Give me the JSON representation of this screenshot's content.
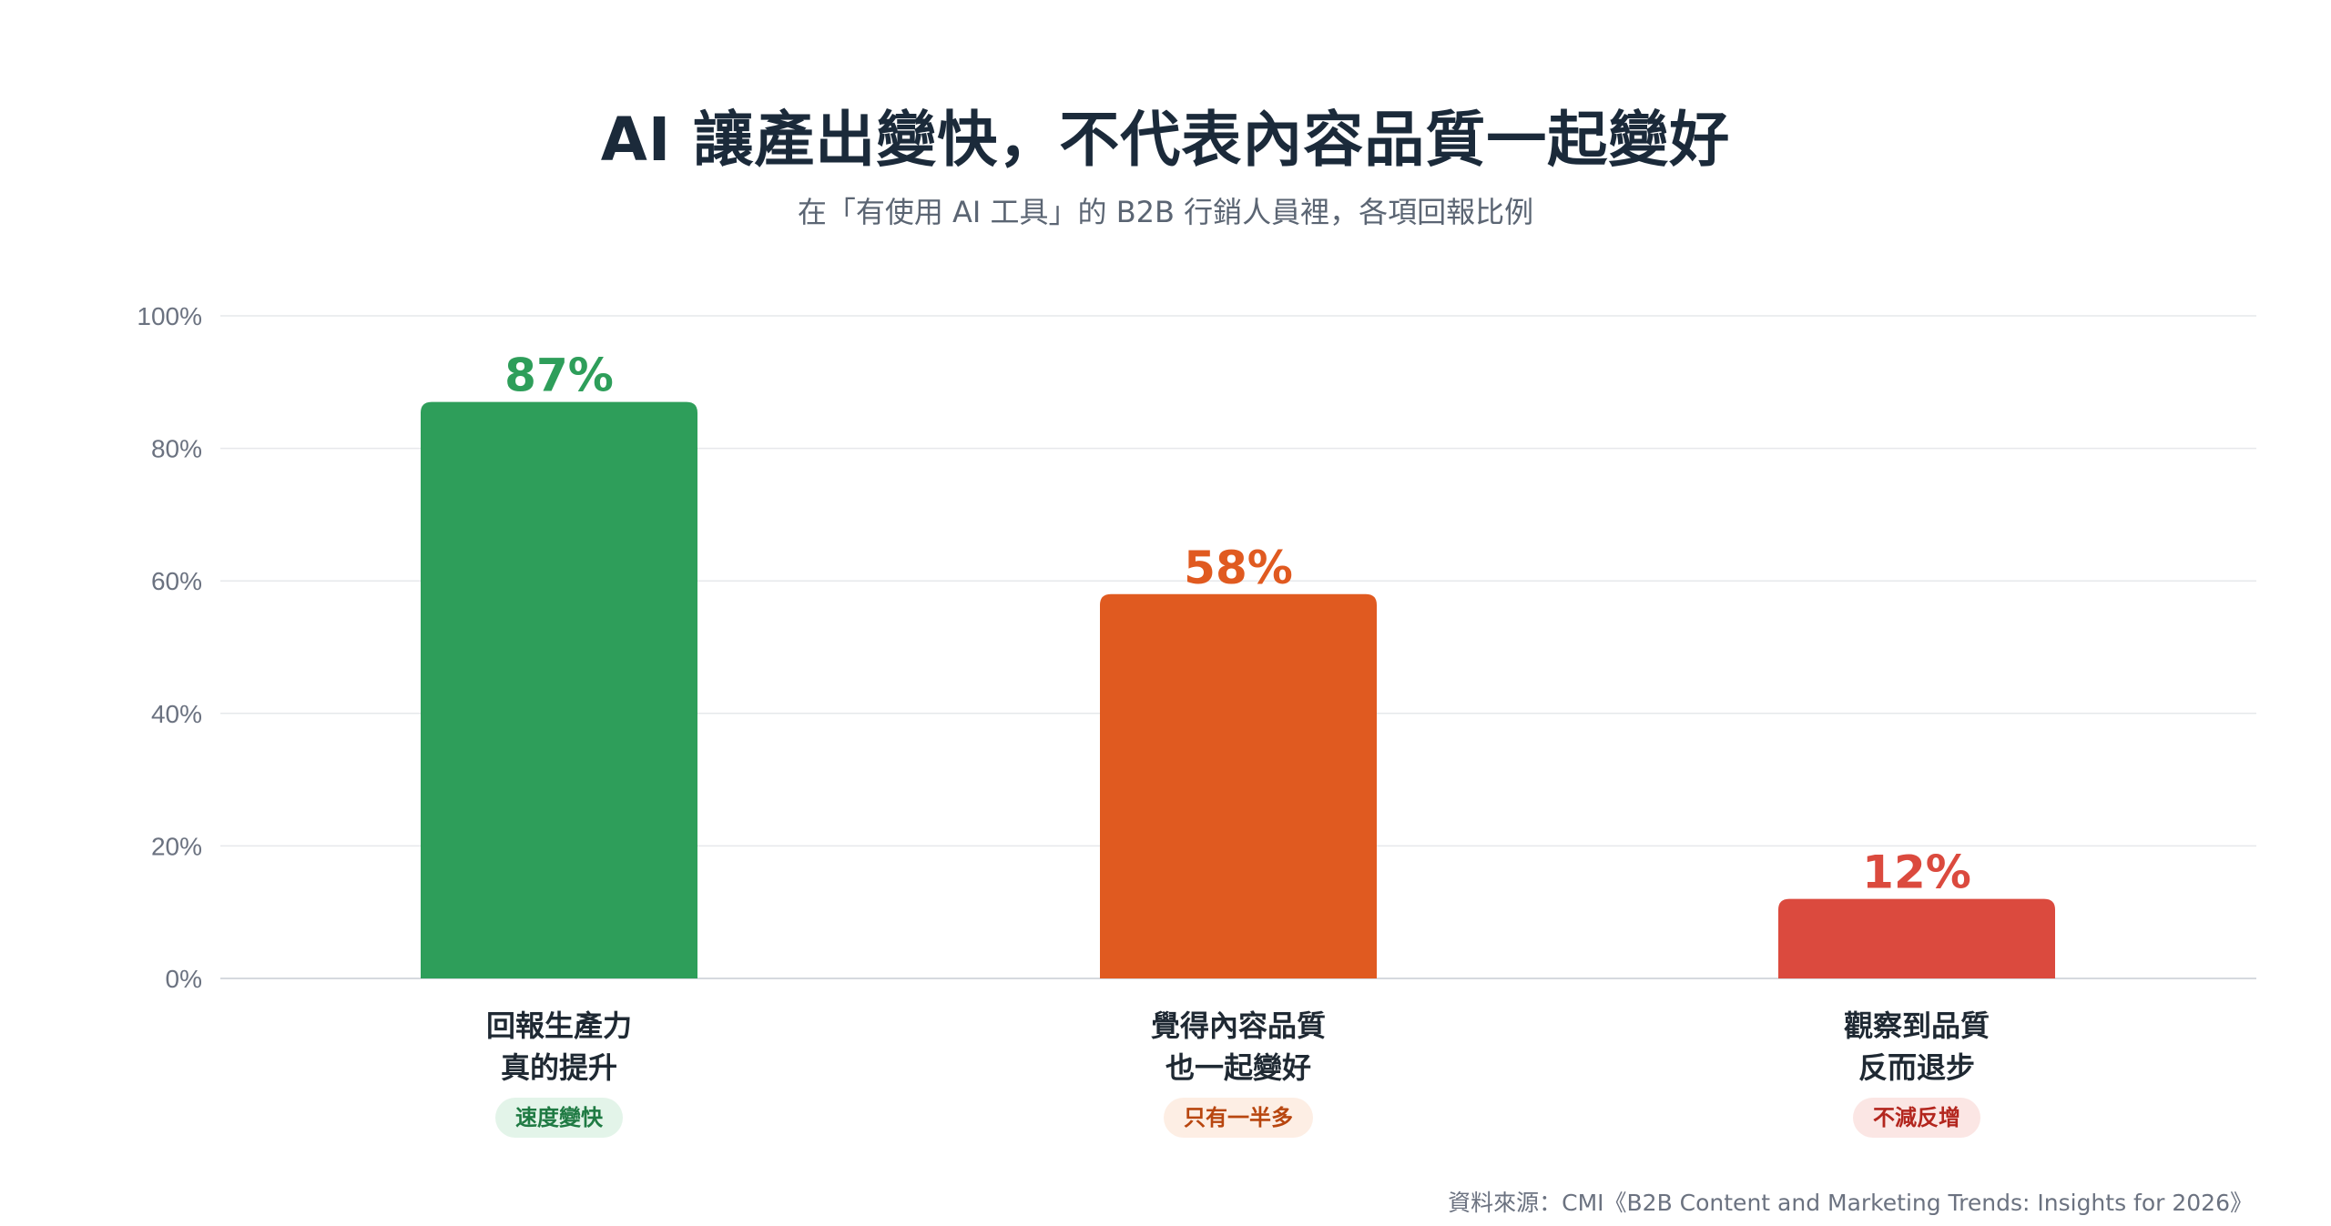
{
  "title": "AI 讓產出變快，不代表內容品質一起變好",
  "subtitle": "在「有使用 AI 工具」的 B2B 行銷人員裡，各項回報比例",
  "source": "資料來源：CMI《B2B Content and Marketing Trends: Insights for 2026》",
  "chart_data": {
    "type": "bar",
    "categories": [
      [
        "回報生產力",
        "真的提升"
      ],
      [
        "覺得內容品質",
        "也一起變好"
      ],
      [
        "觀察到品質",
        "反而退步"
      ]
    ],
    "values": [
      87,
      58,
      12
    ],
    "value_labels": [
      "87%",
      "58%",
      "12%"
    ],
    "badges": [
      "速度變快",
      "只有一半多",
      "不減反增"
    ],
    "bar_colors": [
      "#2e9e5a",
      "#e05a20",
      "#db4a3e"
    ],
    "label_colors": [
      "#2e9e5a",
      "#e05a20",
      "#db4a3e"
    ],
    "badge_bg": [
      "#e3f4e9",
      "#fdeee4",
      "#fbe6e4"
    ],
    "badge_text": [
      "#1f7a43",
      "#b8460f",
      "#b3261e"
    ],
    "ylim": [
      0,
      100
    ],
    "yticks": [
      "0%",
      "20%",
      "40%",
      "60%",
      "80%",
      "100%"
    ],
    "grid": true,
    "legend": "none"
  }
}
